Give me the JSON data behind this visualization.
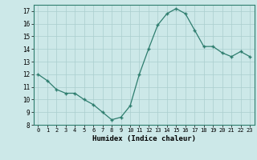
{
  "x": [
    0,
    1,
    2,
    3,
    4,
    5,
    6,
    7,
    8,
    9,
    10,
    11,
    12,
    13,
    14,
    15,
    16,
    17,
    18,
    19,
    20,
    21,
    22,
    23
  ],
  "y": [
    12,
    11.5,
    10.8,
    10.5,
    10.5,
    10.0,
    9.6,
    9.0,
    8.4,
    8.6,
    9.5,
    12.0,
    14.0,
    15.9,
    16.8,
    17.2,
    16.8,
    15.5,
    14.2,
    14.2,
    13.7,
    13.4,
    13.8,
    13.4
  ],
  "xlabel": "Humidex (Indice chaleur)",
  "ylim": [
    8,
    17.5
  ],
  "xlim": [
    -0.5,
    23.5
  ],
  "yticks": [
    8,
    9,
    10,
    11,
    12,
    13,
    14,
    15,
    16,
    17
  ],
  "xticks": [
    0,
    1,
    2,
    3,
    4,
    5,
    6,
    7,
    8,
    9,
    10,
    11,
    12,
    13,
    14,
    15,
    16,
    17,
    18,
    19,
    20,
    21,
    22,
    23
  ],
  "line_color": "#2e7d6e",
  "bg_color": "#cce8e8",
  "grid_color": "#aacece"
}
